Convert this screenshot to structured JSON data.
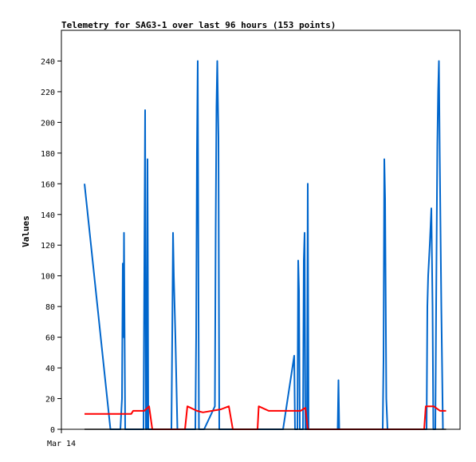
{
  "chart_data": {
    "type": "line",
    "title": "Telemetry for SAG3-1 over last 96 hours (153 points)",
    "ylabel": "Values",
    "xlabel": "",
    "ylim": [
      0,
      260
    ],
    "xlim": [
      0,
      100
    ],
    "grid": false,
    "x_tick_labels": [
      {
        "x": 0,
        "label": "Mar 14"
      }
    ],
    "y_ticks": [
      0,
      20,
      40,
      60,
      80,
      100,
      120,
      140,
      160,
      180,
      200,
      220,
      240
    ],
    "series": [
      {
        "color": "#0066cc",
        "points": [
          [
            5.8,
            160
          ],
          [
            12.3,
            0
          ],
          [
            14.8,
            0
          ],
          [
            15.2,
            20
          ],
          [
            15.4,
            108
          ],
          [
            15.6,
            60
          ],
          [
            15.7,
            128
          ],
          [
            16.0,
            0
          ],
          [
            20.6,
            0
          ],
          [
            20.8,
            104
          ],
          [
            21.0,
            208
          ],
          [
            21.2,
            0
          ],
          [
            21.4,
            0
          ],
          [
            21.6,
            176
          ],
          [
            21.8,
            0
          ],
          [
            27.6,
            0
          ],
          [
            27.8,
            60
          ],
          [
            28.0,
            128
          ],
          [
            28.2,
            100
          ],
          [
            28.6,
            60
          ],
          [
            29.1,
            0
          ],
          [
            33.6,
            0
          ],
          [
            33.8,
            60
          ],
          [
            34.0,
            180
          ],
          [
            34.2,
            240
          ],
          [
            34.5,
            0
          ],
          [
            35.8,
            0
          ],
          [
            38.5,
            15
          ],
          [
            38.7,
            130
          ],
          [
            38.9,
            210
          ],
          [
            39.1,
            240
          ],
          [
            39.4,
            190
          ],
          [
            39.6,
            0
          ],
          [
            55.6,
            0
          ],
          [
            58.4,
            48
          ],
          [
            58.6,
            0
          ],
          [
            59.2,
            0
          ],
          [
            59.4,
            110
          ],
          [
            59.6,
            90
          ],
          [
            59.8,
            0
          ],
          [
            60.6,
            0
          ],
          [
            60.8,
            110
          ],
          [
            61.0,
            128
          ],
          [
            61.2,
            0
          ],
          [
            61.6,
            0
          ],
          [
            61.8,
            160
          ],
          [
            62.0,
            0
          ],
          [
            69.3,
            0
          ],
          [
            69.5,
            32
          ],
          [
            69.7,
            0
          ],
          [
            80.6,
            0
          ],
          [
            80.8,
            45
          ],
          [
            81.0,
            176
          ],
          [
            81.2,
            150
          ],
          [
            81.5,
            20
          ],
          [
            81.8,
            0
          ],
          [
            91.6,
            0
          ],
          [
            91.8,
            80
          ],
          [
            92.0,
            100
          ],
          [
            92.4,
            120
          ],
          [
            92.8,
            144
          ],
          [
            93.1,
            80
          ],
          [
            93.3,
            0
          ],
          [
            93.8,
            0
          ],
          [
            94.0,
            80
          ],
          [
            94.3,
            185
          ],
          [
            94.5,
            220
          ],
          [
            94.7,
            240
          ],
          [
            94.9,
            180
          ],
          [
            95.3,
            80
          ],
          [
            95.7,
            0
          ]
        ]
      },
      {
        "color": "#ff0000",
        "points": [
          [
            5.8,
            10
          ],
          [
            17.5,
            10
          ],
          [
            18.0,
            12
          ],
          [
            20.8,
            12
          ],
          [
            22.0,
            15
          ],
          [
            22.8,
            0
          ],
          [
            29.1,
            0
          ],
          [
            31.0,
            0
          ],
          [
            31.6,
            15
          ],
          [
            34.0,
            12
          ],
          [
            35.5,
            11
          ],
          [
            40.0,
            13
          ],
          [
            42.0,
            15
          ],
          [
            43.0,
            0
          ],
          [
            48.0,
            0
          ],
          [
            49.2,
            0
          ],
          [
            49.5,
            15
          ],
          [
            52.0,
            12
          ],
          [
            60.0,
            12
          ],
          [
            61.2,
            14
          ],
          [
            61.8,
            0
          ],
          [
            91.0,
            0
          ],
          [
            91.4,
            15
          ],
          [
            93.4,
            15
          ],
          [
            95.0,
            12
          ],
          [
            96.5,
            12
          ]
        ]
      },
      {
        "color": "#000000",
        "points": [
          [
            5.8,
            0
          ],
          [
            96.5,
            0
          ]
        ]
      }
    ]
  }
}
